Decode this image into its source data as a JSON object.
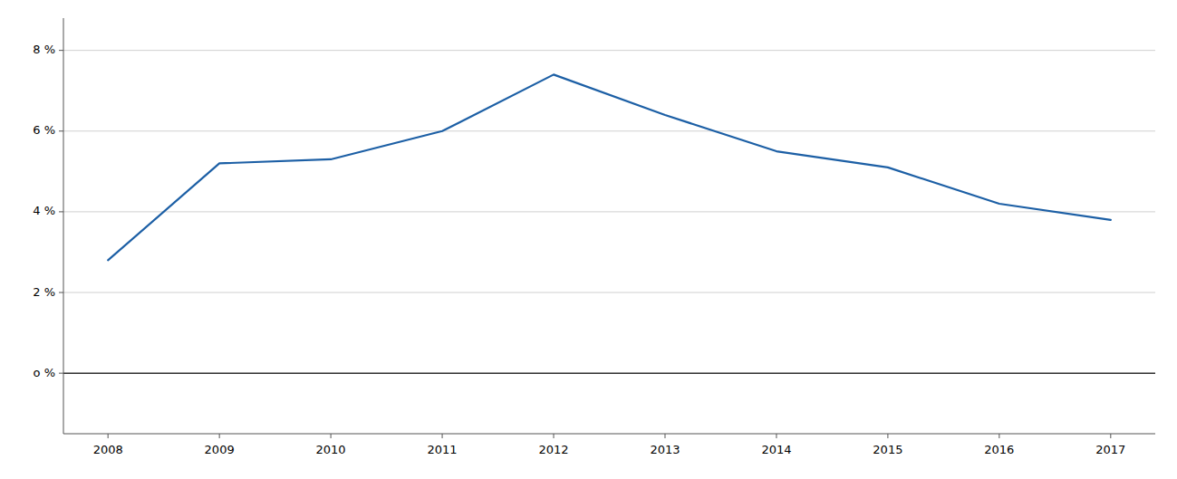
{
  "chart_data": {
    "type": "line",
    "x": [
      2008,
      2009,
      2010,
      2011,
      2012,
      2013,
      2014,
      2015,
      2016,
      2017
    ],
    "values": [
      2.8,
      5.2,
      5.3,
      6.0,
      7.4,
      6.4,
      5.5,
      5.1,
      4.2,
      3.8
    ],
    "color": "#1C5FA5",
    "xlim": [
      2007.6,
      2017.4
    ],
    "xticks": [
      2008,
      2009,
      2010,
      2011,
      2012,
      2013,
      2014,
      2015,
      2016,
      2017
    ],
    "ylim": [
      -1.5,
      8.8
    ],
    "yticks": [
      {
        "value": 0,
        "label": "o %"
      },
      {
        "value": 2,
        "label": "2 %"
      },
      {
        "value": 4,
        "label": "4 %"
      },
      {
        "value": 6,
        "label": "6 %"
      },
      {
        "value": 8,
        "label": "8 %"
      }
    ],
    "grid": true
  }
}
